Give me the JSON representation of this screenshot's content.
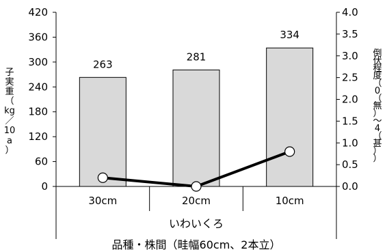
{
  "chart_data": {
    "type": "bar",
    "categories": [
      "30cm",
      "20cm",
      "10cm"
    ],
    "group_label": "いわいくろ",
    "xlabel": "品種・株間（畦幅60cm、2本立）",
    "ylabel_left_chars": [
      "子",
      "実",
      "重",
      "（",
      "kg",
      "／",
      "10",
      "a",
      "）"
    ],
    "ylabel_right_chars": [
      "倒",
      "伏",
      "程",
      "度",
      "（",
      "0",
      "（",
      "無",
      "）",
      "～",
      "4",
      "（",
      "甚",
      "）",
      "）"
    ],
    "y_left_ticks": [
      "0",
      "60",
      "120",
      "180",
      "240",
      "300",
      "360",
      "420"
    ],
    "y_right_ticks": [
      "0.0",
      "0.5",
      "1.0",
      "1.5",
      "2.0",
      "2.5",
      "3.0",
      "3.5",
      "4.0"
    ],
    "ylim_left": [
      0,
      420
    ],
    "ylim_right": [
      0,
      4.0
    ],
    "series": [
      {
        "axis": "left",
        "kind": "bar",
        "values": [
          263,
          281,
          334
        ],
        "labels": [
          "263",
          "281",
          "334"
        ]
      },
      {
        "axis": "right",
        "kind": "line",
        "values": [
          0.2,
          0.0,
          0.8
        ]
      }
    ],
    "grid": false,
    "colors": {
      "bar_fill": "#d9d9d9",
      "bar_stroke": "#000000",
      "line": "#000000",
      "marker_fill": "#ffffff"
    }
  }
}
